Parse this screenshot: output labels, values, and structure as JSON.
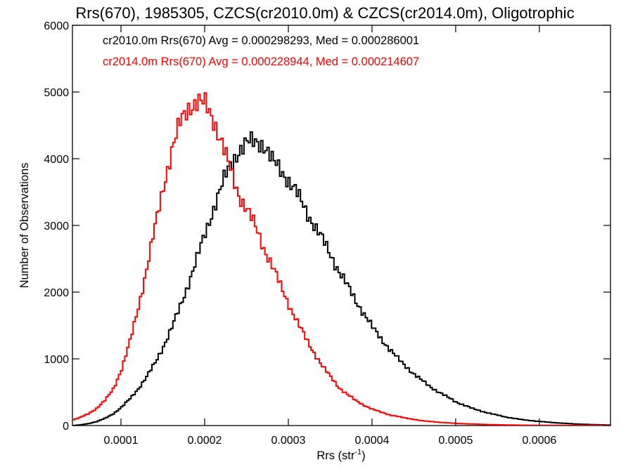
{
  "chart_data": {
    "type": "line",
    "title": "Rrs(670), 1985305, CZCS(cr2010.0m) & CZCS(cr2014.0m), Oligotrophic",
    "xlabel": {
      "base": "Rrs (str",
      "sup": "-1",
      "close": ")"
    },
    "ylabel": "Number of Observations",
    "xlim": [
      4.2e-05,
      0.000685
    ],
    "ylim": [
      0,
      6000
    ],
    "xticks": [
      0.0001,
      0.0002,
      0.0003,
      0.0004,
      0.0005,
      0.0006
    ],
    "xtick_labels": [
      "0.0001",
      "0.0002",
      "0.0003",
      "0.0004",
      "0.0005",
      "0.0006"
    ],
    "yticks": [
      0,
      1000,
      2000,
      3000,
      4000,
      5000,
      6000
    ],
    "ytick_labels": [
      "0",
      "1000",
      "2000",
      "3000",
      "4000",
      "5000",
      "6000"
    ],
    "grid": false,
    "legend_position": "top-left",
    "step": true,
    "series": [
      {
        "name": "cr2010.0m Rrs(670)",
        "legend": "cr2010.0m Rrs(670) Avg = 0.000298293, Med = 0.000286001",
        "color": "#000000",
        "x": [
          5e-05,
          6e-05,
          7e-05,
          8e-05,
          9e-05,
          0.0001,
          0.00011,
          0.00012,
          0.00013,
          0.00014,
          0.00015,
          0.00016,
          0.00017,
          0.00018,
          0.00019,
          0.0002,
          0.00021,
          0.00022,
          0.00023,
          0.00024,
          0.00025,
          0.00026,
          0.000265,
          0.00027,
          0.00028,
          0.00029,
          0.0003,
          0.00031,
          0.00032,
          0.00033,
          0.00034,
          0.00035,
          0.00036,
          0.00037,
          0.00038,
          0.00039,
          0.0004,
          0.00041,
          0.00042,
          0.00043,
          0.00044,
          0.00045,
          0.00046,
          0.00047,
          0.00048,
          0.00049,
          0.0005,
          0.00052,
          0.00054,
          0.00056,
          0.00058,
          0.0006,
          0.00062,
          0.00064,
          0.00066,
          0.00068
        ],
        "values": [
          10,
          30,
          60,
          110,
          180,
          280,
          410,
          560,
          740,
          950,
          1200,
          1480,
          1800,
          2150,
          2520,
          2900,
          3280,
          3620,
          3920,
          4130,
          4230,
          4260,
          4250,
          4200,
          3960,
          3830,
          3660,
          3460,
          3220,
          3000,
          2780,
          2540,
          2300,
          2080,
          1860,
          1660,
          1460,
          1300,
          1140,
          1000,
          880,
          760,
          660,
          570,
          490,
          420,
          350,
          250,
          180,
          125,
          85,
          60,
          40,
          25,
          15,
          8
        ]
      },
      {
        "name": "cr2014.0m Rrs(670)",
        "legend": "cr2014.0m Rrs(670) Avg = 0.000228944, Med = 0.000214607",
        "color": "#ff0000",
        "x": [
          4e-05,
          5e-05,
          6e-05,
          7e-05,
          8e-05,
          9e-05,
          0.0001,
          0.00011,
          0.00012,
          0.00013,
          0.00014,
          0.00015,
          0.00016,
          0.00017,
          0.00018,
          0.00019,
          0.0002,
          0.00021,
          0.00022,
          0.00023,
          0.00024,
          0.00025,
          0.00026,
          0.00027,
          0.00028,
          0.00029,
          0.0003,
          0.00031,
          0.00032,
          0.00033,
          0.00034,
          0.00035,
          0.00036,
          0.00037,
          0.00038,
          0.00039,
          0.0004,
          0.00042,
          0.00044,
          0.00046,
          0.00048,
          0.0005,
          0.00052,
          0.00054,
          0.00056,
          0.00058,
          0.0006
        ],
        "values": [
          80,
          120,
          180,
          260,
          380,
          560,
          860,
          1280,
          1800,
          2380,
          3000,
          3620,
          4150,
          4550,
          4780,
          4860,
          4800,
          4570,
          4220,
          3800,
          3450,
          3230,
          2960,
          2650,
          2380,
          2080,
          1800,
          1540,
          1300,
          1080,
          880,
          720,
          560,
          460,
          370,
          300,
          240,
          160,
          110,
          70,
          48,
          32,
          22,
          14,
          9,
          5,
          3
        ]
      }
    ]
  }
}
